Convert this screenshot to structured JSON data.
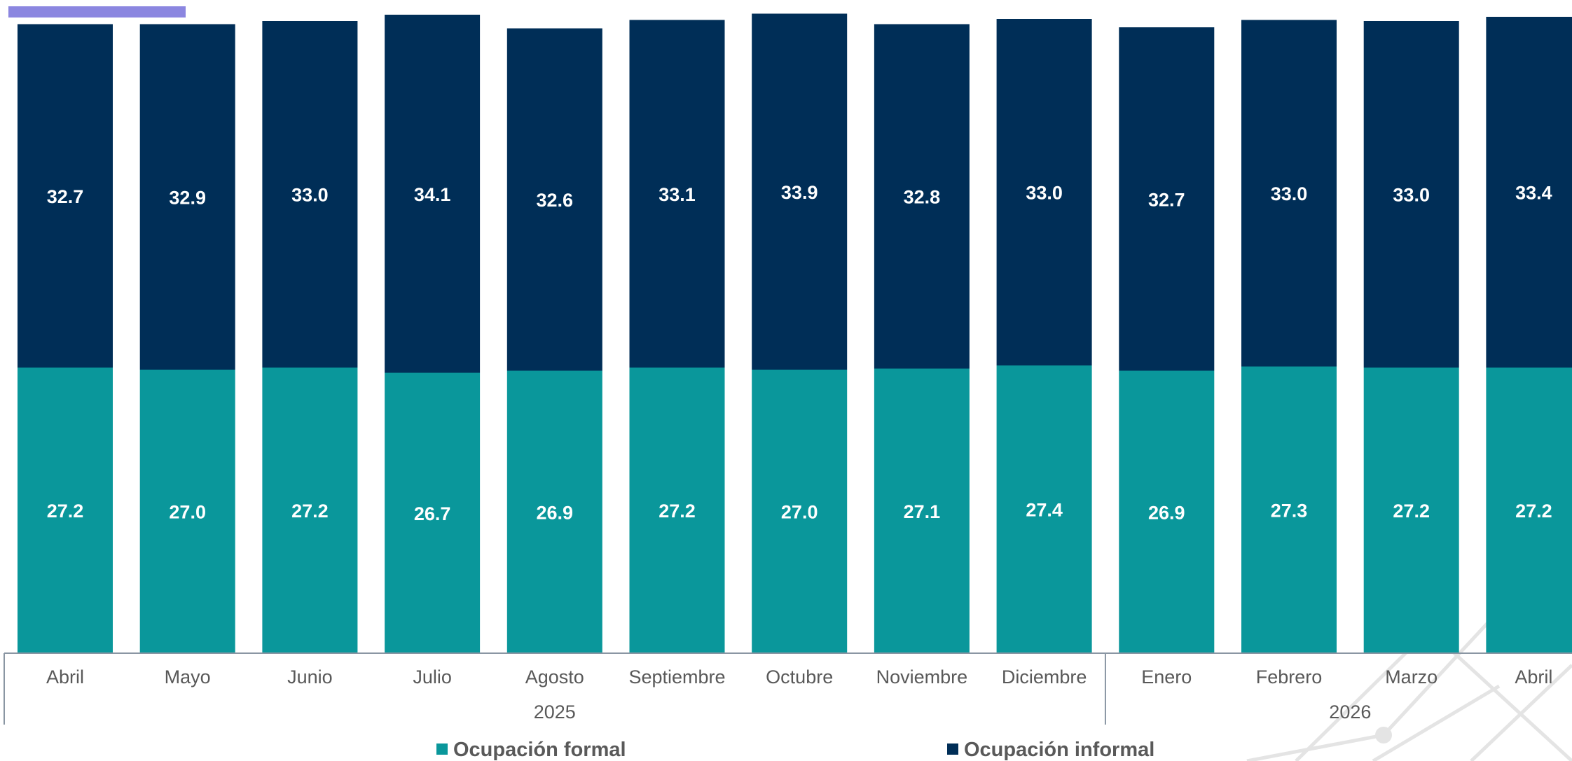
{
  "colors": {
    "formal": "#0a979b",
    "informal": "#002e57",
    "top_accent": "#8b86e0",
    "axis": "#8a96a3",
    "text": "#595959",
    "watermark": "#e4e4e4"
  },
  "chart_data": {
    "type": "bar",
    "stacked": true,
    "title": "",
    "xlabel": "",
    "ylabel": "",
    "grid": false,
    "legend_position": "bottom",
    "years": [
      {
        "label": "2025",
        "count": 9
      },
      {
        "label": "2026",
        "count": 4
      }
    ],
    "categories": [
      "Abril",
      "Mayo",
      "Junio",
      "Julio",
      "Agosto",
      "Septiembre",
      "Octubre",
      "Noviembre",
      "Diciembre",
      "Enero",
      "Febrero",
      "Marzo",
      "Abril"
    ],
    "series": [
      {
        "name": "Ocupación formal",
        "color_key": "formal",
        "values": [
          27.2,
          27.0,
          27.2,
          26.7,
          26.9,
          27.2,
          27.0,
          27.1,
          27.4,
          26.9,
          27.3,
          27.2,
          27.2
        ],
        "labels": [
          "27.2",
          "27.0",
          "27.2",
          "26.7",
          "26.9",
          "27.2",
          "27.0",
          "27.1",
          "27.4",
          "26.9",
          "27.3",
          "27.2",
          "27.2"
        ]
      },
      {
        "name": "Ocupación informal",
        "color_key": "informal",
        "values": [
          32.7,
          32.9,
          33.0,
          34.1,
          32.6,
          33.1,
          33.9,
          32.8,
          33.0,
          32.7,
          33.0,
          33.0,
          33.4
        ],
        "labels": [
          "32.7",
          "32.9",
          "33.0",
          "34.1",
          "32.6",
          "33.1",
          "33.9",
          "32.8",
          "33.0",
          "32.7",
          "33.0",
          "33.0",
          "33.4"
        ]
      }
    ]
  }
}
